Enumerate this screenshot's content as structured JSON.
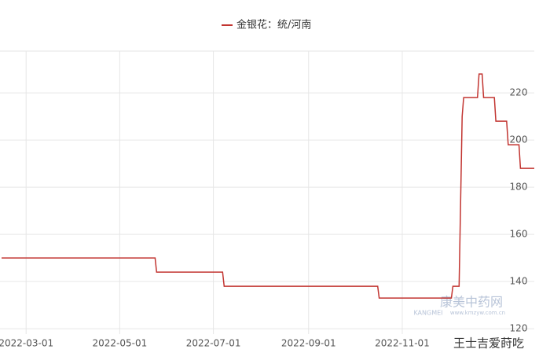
{
  "chart_data": {
    "type": "line",
    "x": [
      "2022-02-13",
      "2022-05-24",
      "2022-05-25",
      "2022-07-07",
      "2022-07-08",
      "2022-10-16",
      "2022-10-17",
      "2022-12-03",
      "2022-12-04",
      "2022-12-08",
      "2022-12-10",
      "2022-12-11",
      "2022-12-20",
      "2022-12-21",
      "2022-12-23",
      "2022-12-24",
      "2022-12-31",
      "2023-01-01",
      "2023-01-08",
      "2023-01-09",
      "2023-01-16",
      "2023-01-17",
      "2023-01-26"
    ],
    "series": [
      {
        "name": "金银花：统/河南",
        "color": "#c23531",
        "values": [
          150,
          150,
          144,
          144,
          138,
          138,
          133,
          133,
          138,
          138,
          210,
          218,
          218,
          228,
          228,
          218,
          218,
          208,
          208,
          198,
          198,
          188,
          188
        ]
      }
    ],
    "xlim": [
      "2022-02-12",
      "2023-01-26"
    ],
    "xticks": [
      "2022-03-01",
      "2022-05-01",
      "2022-07-01",
      "2022-09-01",
      "2022-11-01"
    ],
    "ylim": [
      117.7,
      237.7
    ],
    "yticks": [
      120,
      140,
      160,
      180,
      200,
      220
    ],
    "grid": true,
    "annotations": [
      "康美中药网",
      "KANGMEI",
      "www.kmzyw.com.cn",
      "王士吉爱莳吃"
    ]
  }
}
